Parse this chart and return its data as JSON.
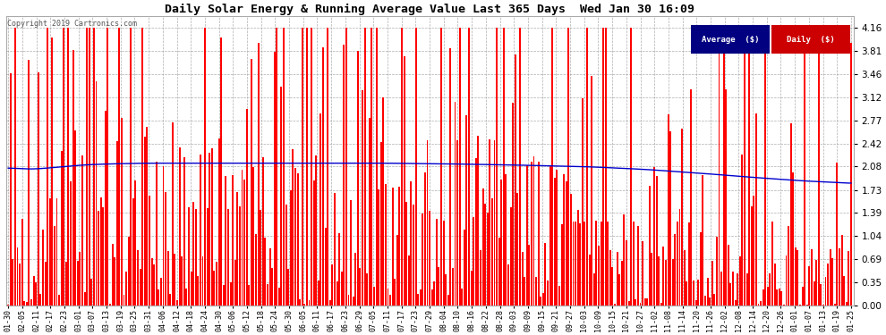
{
  "title": "Daily Solar Energy & Running Average Value Last 365 Days  Wed Jan 30 16:09",
  "copyright": "Copyright 2019 Cartronics.com",
  "ylim": [
    0.0,
    4.33
  ],
  "yticks": [
    0.0,
    0.35,
    0.69,
    1.04,
    1.39,
    1.73,
    2.08,
    2.42,
    2.77,
    3.12,
    3.46,
    3.81,
    4.16
  ],
  "bar_color": "#ff0000",
  "avg_color": "#0000cd",
  "bg_color": "#ffffff",
  "grid_color": "#999999",
  "legend_avg_bg": "#000080",
  "legend_daily_bg": "#cc0000",
  "legend_avg_text": "Average  ($)",
  "legend_daily_text": "Daily  ($)",
  "x_labels": [
    "01-30",
    "02-05",
    "02-11",
    "02-17",
    "02-23",
    "03-01",
    "03-07",
    "03-13",
    "03-19",
    "03-25",
    "03-31",
    "04-06",
    "04-12",
    "04-18",
    "04-24",
    "04-30",
    "05-06",
    "05-12",
    "05-18",
    "05-24",
    "05-30",
    "06-05",
    "06-11",
    "06-17",
    "06-23",
    "06-29",
    "07-05",
    "07-11",
    "07-17",
    "07-23",
    "07-29",
    "08-04",
    "08-10",
    "08-16",
    "08-22",
    "08-28",
    "09-03",
    "09-09",
    "09-15",
    "09-21",
    "09-27",
    "10-03",
    "10-09",
    "10-15",
    "10-21",
    "10-27",
    "11-02",
    "11-08",
    "11-14",
    "11-20",
    "11-26",
    "12-02",
    "12-08",
    "12-14",
    "12-20",
    "12-26",
    "01-01",
    "01-07",
    "01-13",
    "01-19",
    "01-25"
  ],
  "n_bars": 365,
  "avg_values": [
    2.08,
    2.03,
    2.04,
    2.06,
    2.08,
    2.1,
    2.11,
    2.12,
    2.12,
    2.13,
    2.13,
    2.13,
    2.13,
    2.13,
    2.13,
    2.13,
    2.13,
    2.13,
    2.13,
    2.13,
    2.13,
    2.13,
    2.13,
    2.13,
    2.13,
    2.13,
    2.13,
    2.13,
    2.13,
    2.12,
    2.12,
    2.12,
    2.12,
    2.11,
    2.11,
    2.11,
    2.1,
    2.1,
    2.09,
    2.09,
    2.08,
    2.08,
    2.07,
    2.06,
    2.05,
    2.04,
    2.03,
    2.01,
    2.0,
    1.98,
    1.97,
    1.95,
    1.93,
    1.92,
    1.9,
    1.89,
    1.87,
    1.86,
    1.85,
    1.84,
    1.82
  ]
}
